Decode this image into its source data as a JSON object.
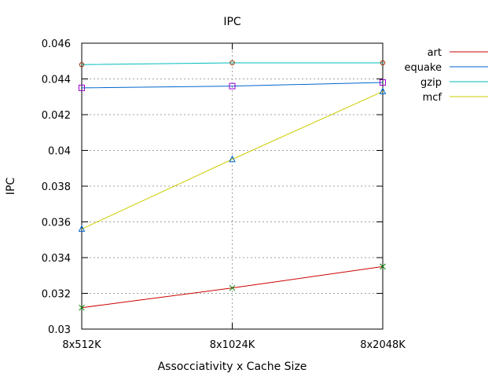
{
  "chart_data": {
    "type": "line",
    "title": "IPC",
    "xlabel": "Assocciativity x Cache Size",
    "ylabel": "IPC",
    "categories": [
      "8x512K",
      "8x1024K",
      "8x2048K"
    ],
    "ylim": [
      0.03,
      0.046
    ],
    "yticks": [
      0.03,
      0.032,
      0.034,
      0.036,
      0.038,
      0.04,
      0.042,
      0.044,
      0.046
    ],
    "ytick_labels": [
      "0.03",
      "0.032",
      "0.034",
      "0.036",
      "0.038",
      "0.04",
      "0.042",
      "0.044",
      "0.046"
    ],
    "grid": true,
    "legend_position": "outside-right-top",
    "series": [
      {
        "name": "art",
        "line_color": "#cc0000",
        "marker": "x",
        "marker_color": "#008800",
        "values": [
          0.0312,
          0.0323,
          0.0335
        ]
      },
      {
        "name": "equake",
        "line_color": "#0066cc",
        "marker": "square",
        "marker_color": "#9900cc",
        "values": [
          0.0435,
          0.0436,
          0.0438
        ]
      },
      {
        "name": "gzip",
        "line_color": "#00bbbb",
        "marker": "circle",
        "marker_color": "#993300",
        "values": [
          0.0448,
          0.0449,
          0.0449
        ]
      },
      {
        "name": "mcf",
        "line_color": "#cccc00",
        "marker": "triangle",
        "marker_color": "#0066cc",
        "values": [
          0.0356,
          0.0395,
          0.0433
        ]
      }
    ]
  }
}
